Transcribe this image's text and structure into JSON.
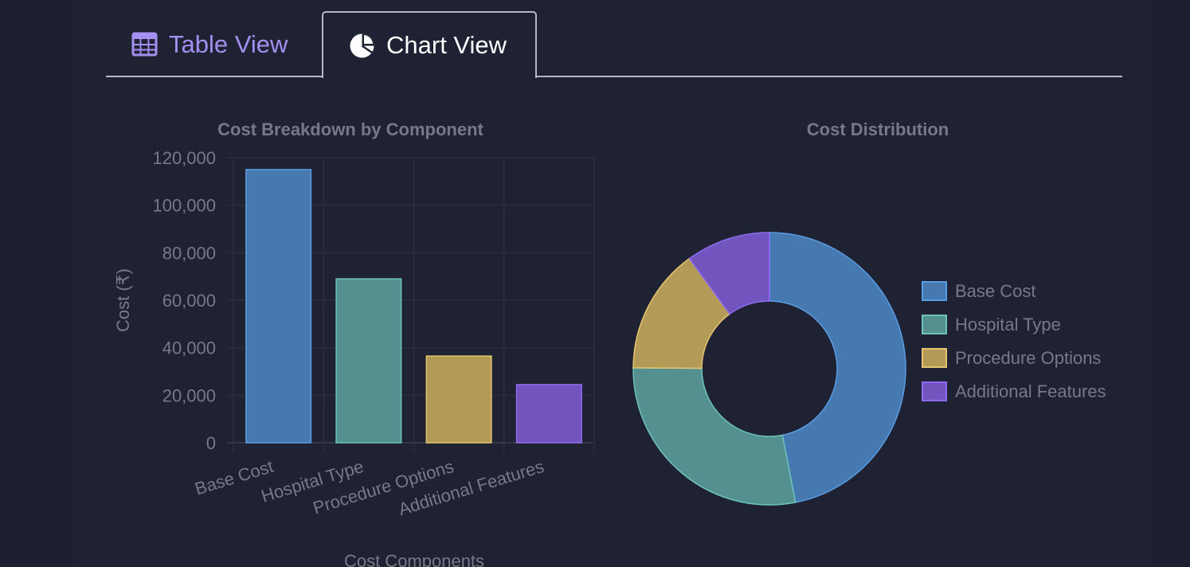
{
  "tabs": [
    {
      "label": "Table View",
      "icon": "table-icon",
      "active": false
    },
    {
      "label": "Chart View",
      "icon": "pie-chart-icon",
      "active": true
    }
  ],
  "colors": {
    "accent": "#a48ff2",
    "series": {
      "base": {
        "fill": "#4579b0",
        "stroke": "#5a9ce3"
      },
      "hospital": {
        "fill": "#559090",
        "stroke": "#6dc2bc"
      },
      "procedure": {
        "fill": "#b39b57",
        "stroke": "#e3c470"
      },
      "additional": {
        "fill": "#7254bf",
        "stroke": "#8d6cf0"
      }
    }
  },
  "chart_data": [
    {
      "type": "bar",
      "title": "Cost Breakdown by Component",
      "xlabel": "Cost Components",
      "ylabel": "Cost (₹)",
      "categories": [
        "Base Cost",
        "Hospital Type",
        "Procedure Options",
        "Additional Features"
      ],
      "values": [
        115000,
        69000,
        36500,
        24500
      ],
      "ylim": [
        0,
        120000
      ],
      "yticks": [
        "0",
        "20,000",
        "40,000",
        "60,000",
        "80,000",
        "100,000",
        "120,000"
      ],
      "ytick_values": [
        0,
        20000,
        40000,
        60000,
        80000,
        100000,
        120000
      ],
      "grid": true
    },
    {
      "type": "pie",
      "title": "Cost Distribution",
      "labels": [
        "Base Cost",
        "Hospital Type",
        "Procedure Options",
        "Additional Features"
      ],
      "values": [
        115000,
        69000,
        36500,
        24500
      ],
      "legend": "right"
    }
  ]
}
